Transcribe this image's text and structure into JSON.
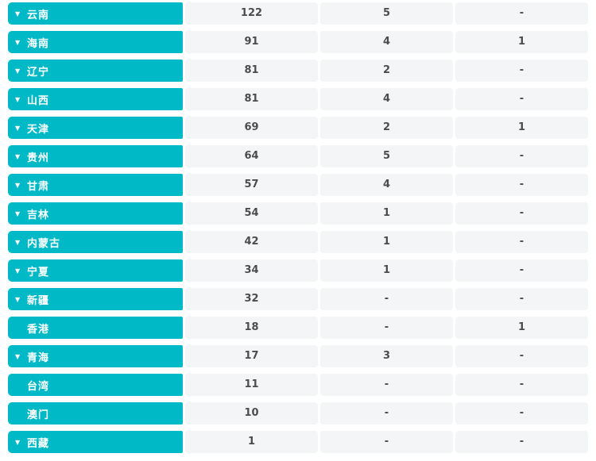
{
  "table": {
    "accent_color": "#00b9c6",
    "cell_bg_color": "#f4f5f6",
    "arrow_icon": "▼",
    "value_columns": 3,
    "empty_value": "-",
    "rows": [
      {
        "name": "云南",
        "expandable": true,
        "values": [
          "122",
          "5",
          "-"
        ]
      },
      {
        "name": "海南",
        "expandable": true,
        "values": [
          "91",
          "4",
          "1"
        ]
      },
      {
        "name": "辽宁",
        "expandable": true,
        "values": [
          "81",
          "2",
          "-"
        ]
      },
      {
        "name": "山西",
        "expandable": true,
        "values": [
          "81",
          "4",
          "-"
        ]
      },
      {
        "name": "天津",
        "expandable": true,
        "values": [
          "69",
          "2",
          "1"
        ]
      },
      {
        "name": "贵州",
        "expandable": true,
        "values": [
          "64",
          "5",
          "-"
        ]
      },
      {
        "name": "甘肃",
        "expandable": true,
        "values": [
          "57",
          "4",
          "-"
        ]
      },
      {
        "name": "吉林",
        "expandable": true,
        "values": [
          "54",
          "1",
          "-"
        ]
      },
      {
        "name": "内蒙古",
        "expandable": true,
        "values": [
          "42",
          "1",
          "-"
        ]
      },
      {
        "name": "宁夏",
        "expandable": true,
        "values": [
          "34",
          "1",
          "-"
        ]
      },
      {
        "name": "新疆",
        "expandable": true,
        "values": [
          "32",
          "-",
          "-"
        ]
      },
      {
        "name": "香港",
        "expandable": false,
        "values": [
          "18",
          "-",
          "1"
        ]
      },
      {
        "name": "青海",
        "expandable": true,
        "values": [
          "17",
          "3",
          "-"
        ]
      },
      {
        "name": "台湾",
        "expandable": false,
        "values": [
          "11",
          "-",
          "-"
        ]
      },
      {
        "name": "澳门",
        "expandable": false,
        "values": [
          "10",
          "-",
          "-"
        ]
      },
      {
        "name": "西藏",
        "expandable": true,
        "values": [
          "1",
          "-",
          "-"
        ]
      }
    ]
  }
}
